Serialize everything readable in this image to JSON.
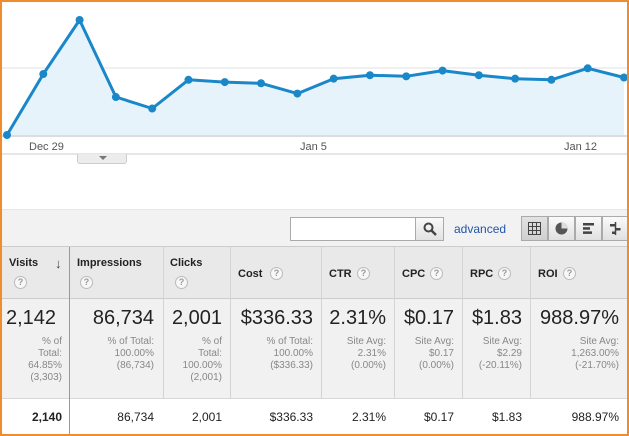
{
  "chart": {
    "x_labels": [
      "Dec 29",
      "Jan 5",
      "Jan 12"
    ],
    "line_color": "#1a87c9",
    "fill_color": "#e6f3fb",
    "values": [
      0,
      53,
      100,
      33,
      23,
      48,
      46,
      45,
      36,
      49,
      52,
      51,
      56,
      52,
      49,
      48,
      58,
      50
    ]
  },
  "toolbar": {
    "search_value": "",
    "advanced_label": "advanced"
  },
  "columns": [
    {
      "label": "Visits",
      "sort": "↓",
      "big": "2,142",
      "sub": [
        "% of",
        "Total:",
        "64.85%",
        "(3,303)"
      ],
      "row": "2,140"
    },
    {
      "label": "Impressions",
      "big": "86,734",
      "sub": [
        "% of Total:",
        "100.00%",
        "(86,734)"
      ],
      "row": "86,734"
    },
    {
      "label": "Clicks",
      "big": "2,001",
      "sub": [
        "% of",
        "Total:",
        "100.00%",
        "(2,001)"
      ],
      "row": "2,001"
    },
    {
      "label": "Cost",
      "big": "$336.33",
      "sub": [
        "% of Total:",
        "100.00%",
        "($336.33)"
      ],
      "row": "$336.33"
    },
    {
      "label": "CTR",
      "big": "2.31%",
      "sub": [
        "Site Avg:",
        "2.31%",
        "(0.00%)"
      ],
      "row": "2.31%"
    },
    {
      "label": "CPC",
      "big": "$0.17",
      "sub": [
        "Site Avg:",
        "$0.17",
        "(0.00%)"
      ],
      "row": "$0.17"
    },
    {
      "label": "RPC",
      "big": "$1.83",
      "sub": [
        "Site Avg:",
        "$2.29",
        "(-20.11%)"
      ],
      "row": "$1.83"
    },
    {
      "label": "ROI",
      "big": "988.97%",
      "sub": [
        "Site Avg:",
        "1,263.00%",
        "(-21.70%)"
      ],
      "row": "988.97%"
    }
  ]
}
